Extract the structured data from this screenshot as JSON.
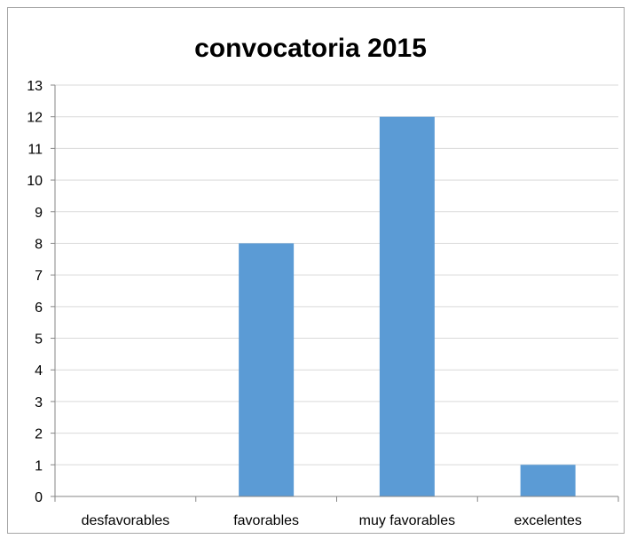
{
  "chart_data": {
    "type": "bar",
    "title": "convocatoria 2015",
    "categories": [
      "desfavorables",
      "favorables",
      "muy favorables",
      "excelentes"
    ],
    "values": [
      0,
      8,
      12,
      1
    ],
    "xlabel": "",
    "ylabel": "",
    "ylim": [
      0,
      13
    ],
    "yticks": [
      "0",
      "1",
      "2",
      "3",
      "4",
      "5",
      "6",
      "7",
      "8",
      "9",
      "10",
      "11",
      "12",
      "13"
    ],
    "grid": true,
    "legend": "none",
    "bar_color": "#5b9bd5",
    "grid_color": "#d9d9d9",
    "axis_color": "#868686"
  }
}
